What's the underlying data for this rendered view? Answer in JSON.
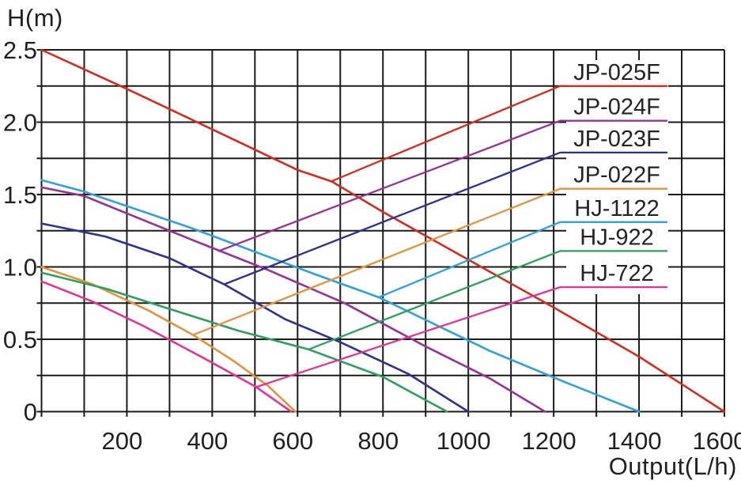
{
  "chart_data": {
    "type": "line",
    "title": "",
    "xlabel": "Output(L/h)",
    "ylabel": "H(m)",
    "xlim": [
      0,
      1600
    ],
    "ylim": [
      0,
      2.5
    ],
    "x_grid_step": 100,
    "y_grid_step": 0.25,
    "grid": true,
    "grid_color": "#1d1b19",
    "text_color": "#231f20",
    "legend_position": "right-inside",
    "legend_box_color": "#ffffff",
    "x_ticks": [
      {
        "value": 200,
        "label": "200"
      },
      {
        "value": 400,
        "label": "400"
      },
      {
        "value": 600,
        "label": "600"
      },
      {
        "value": 800,
        "label": "800"
      },
      {
        "value": 1000,
        "label": "1000"
      },
      {
        "value": 1200,
        "label": "1200"
      },
      {
        "value": 1400,
        "label": "1400"
      },
      {
        "value": 1600,
        "label": "1600"
      }
    ],
    "y_ticks": [
      {
        "value": 0,
        "label": "0"
      },
      {
        "value": 0.5,
        "label": "0.5"
      },
      {
        "value": 1,
        "label": "1.0"
      },
      {
        "value": 1.5,
        "label": "1.5"
      },
      {
        "value": 2,
        "label": "2.0"
      },
      {
        "value": 2.5,
        "label": "2.5"
      }
    ],
    "series": [
      {
        "name": "JP-025F",
        "color": "#d8291d",
        "points": [
          [
            0,
            2.5
          ],
          [
            200,
            2.23
          ],
          [
            400,
            1.95
          ],
          [
            600,
            1.67
          ],
          [
            680,
            1.59
          ],
          [
            800,
            1.38
          ],
          [
            1000,
            1.05
          ],
          [
            1200,
            0.72
          ],
          [
            1400,
            0.38
          ],
          [
            1600,
            0
          ]
        ],
        "leader": {
          "start": [
            678,
            1.59
          ],
          "elbow_q": 1215,
          "end_q": 1465,
          "level_h": 2.25
        }
      },
      {
        "name": "JP-024F",
        "color": "#993096",
        "points": [
          [
            0,
            1.55
          ],
          [
            100,
            1.49
          ],
          [
            200,
            1.37
          ],
          [
            350,
            1.19
          ],
          [
            530,
            0.98
          ],
          [
            710,
            0.75
          ],
          [
            900,
            0.45
          ],
          [
            1050,
            0.23
          ],
          [
            1180,
            0
          ]
        ],
        "leader": {
          "start": [
            415,
            1.11
          ],
          "elbow_q": 1215,
          "end_q": 1465,
          "level_h": 2.01
        }
      },
      {
        "name": "JP-023F",
        "color": "#2e3192",
        "points": [
          [
            0,
            1.3
          ],
          [
            150,
            1.21
          ],
          [
            300,
            1.06
          ],
          [
            428,
            0.88
          ],
          [
            570,
            0.64
          ],
          [
            700,
            0.48
          ],
          [
            860,
            0.26
          ],
          [
            1000,
            0
          ]
        ],
        "leader": {
          "start": [
            428,
            0.88
          ],
          "elbow_q": 1215,
          "end_q": 1465,
          "level_h": 1.79
        }
      },
      {
        "name": "JP-022F",
        "color": "#e6913c",
        "points": [
          [
            0,
            1.0
          ],
          [
            120,
            0.88
          ],
          [
            250,
            0.7
          ],
          [
            355,
            0.53
          ],
          [
            450,
            0.35
          ],
          [
            530,
            0.18
          ],
          [
            595,
            0
          ]
        ],
        "leader": {
          "start": [
            355,
            0.53
          ],
          "elbow_q": 1215,
          "end_q": 1465,
          "level_h": 1.54
        }
      },
      {
        "name": "HJ-1122",
        "color": "#2da3dc",
        "points": [
          [
            0,
            1.6
          ],
          [
            100,
            1.52
          ],
          [
            350,
            1.27
          ],
          [
            640,
            0.95
          ],
          [
            790,
            0.79
          ],
          [
            1050,
            0.42
          ],
          [
            1230,
            0.2
          ],
          [
            1400,
            0
          ]
        ],
        "leader": {
          "start": [
            790,
            0.79
          ],
          "elbow_q": 1215,
          "end_q": 1465,
          "level_h": 1.31
        }
      },
      {
        "name": "HJ-922",
        "color": "#2ba05f",
        "points": [
          [
            0,
            0.96
          ],
          [
            150,
            0.85
          ],
          [
            300,
            0.71
          ],
          [
            460,
            0.56
          ],
          [
            626,
            0.43
          ],
          [
            800,
            0.24
          ],
          [
            950,
            0
          ]
        ],
        "leader": {
          "start": [
            626,
            0.43
          ],
          "elbow_q": 1215,
          "end_q": 1465,
          "level_h": 1.11
        }
      },
      {
        "name": "HJ-722",
        "color": "#e8328f",
        "points": [
          [
            0,
            0.9
          ],
          [
            120,
            0.76
          ],
          [
            240,
            0.59
          ],
          [
            380,
            0.37
          ],
          [
            503,
            0.17
          ],
          [
            585,
            0
          ]
        ],
        "leader": {
          "start": [
            503,
            0.17
          ],
          "elbow_q": 1215,
          "end_q": 1465,
          "level_h": 0.86
        }
      }
    ]
  }
}
